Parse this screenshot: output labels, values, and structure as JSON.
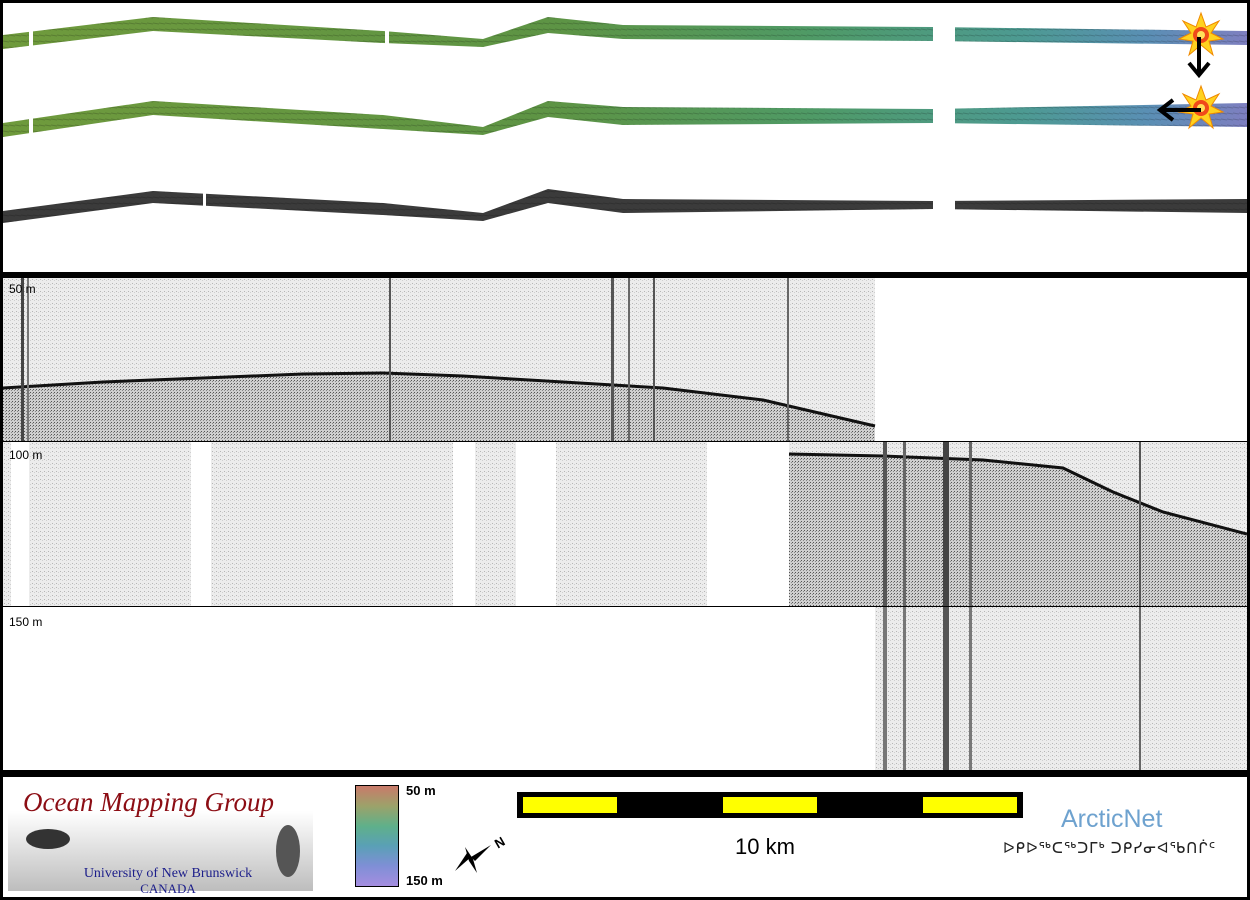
{
  "profile": {
    "depth_labels": [
      "50 m",
      "100 m",
      "150 m"
    ]
  },
  "footer": {
    "logo_title": "Ocean Mapping Group",
    "logo_university": "University of New Brunswick",
    "logo_country": "CANADA",
    "colorbar_top": "50 m",
    "colorbar_bottom": "150 m",
    "north_letter": "N",
    "scale_label": "10 km",
    "arcticnet_name": "ArcticNet",
    "arcticnet_syllabics": "ᐅᑭᐅᖅᑕᖅᑐᒥᒃ ᑐᑭᓯᓂᐊᖃᑎᒌᑦ"
  },
  "colors": {
    "logo_red": "#8c0d14",
    "logo_blue": "#1c1e8a",
    "scale_yellow": "#ffff00",
    "arctic_blue": "#6ea2cf"
  }
}
